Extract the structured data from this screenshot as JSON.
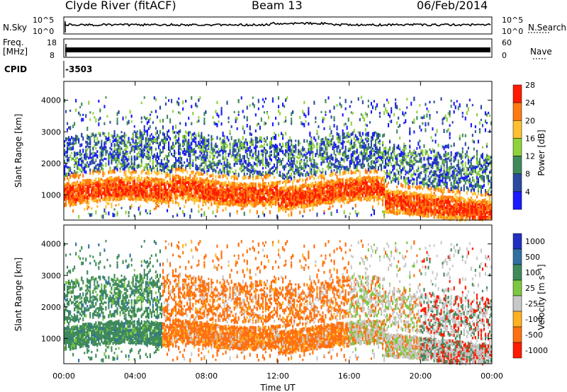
{
  "header": {
    "station": "Clyde River (fitACF)",
    "beam": "Beam 13",
    "date": "06/Feb/2014"
  },
  "noise_panel": {
    "left_label": "N.Sky",
    "right_label": "N.Search",
    "tick_top": "10^5",
    "tick_bottom": "10^0"
  },
  "freq_panel": {
    "left_label_1": "Freq.",
    "left_label_2": "[MHz]",
    "right_label": "Nave",
    "left_ticks": [
      "18",
      "8"
    ],
    "right_ticks": [
      "60",
      "0"
    ]
  },
  "cpid": {
    "label": "CPID",
    "value": "-3503"
  },
  "chart_data": [
    {
      "type": "heatmap",
      "name": "power",
      "ylabel": "Slant Range [km]",
      "xlabel": "",
      "yticks": [
        "1000",
        "2000",
        "3000",
        "4000"
      ],
      "ylim": [
        200,
        4600
      ],
      "colorbar_label": "Power [dB]",
      "colorbar_ticks": [
        "4",
        "8",
        "12",
        "16",
        "20",
        "24",
        "28"
      ],
      "colors": [
        "#1a1aff",
        "#2a4aa0",
        "#3f8a5a",
        "#8fd23a",
        "#ffc030",
        "#ff7a10",
        "#ff1a00"
      ]
    },
    {
      "type": "heatmap",
      "name": "velocity",
      "ylabel": "Slant Range [km]",
      "xlabel": "Time UT",
      "yticks": [
        "1000",
        "2000",
        "3000",
        "4000"
      ],
      "ylim": [
        200,
        4600
      ],
      "xticks": [
        "00:00",
        "04:00",
        "08:00",
        "12:00",
        "16:00",
        "20:00",
        "00:00"
      ],
      "colorbar_label": "Velocity [m s⁻¹]",
      "colorbar_ticks": [
        "1000",
        "500",
        "100",
        "25",
        "-25",
        "-100",
        "-500",
        "-1000"
      ],
      "colors": [
        "#2030c0",
        "#3070a0",
        "#3f8a5a",
        "#7cc840",
        "#c8c8c8",
        "#ffb020",
        "#ff7010",
        "#ff1a00"
      ]
    }
  ]
}
